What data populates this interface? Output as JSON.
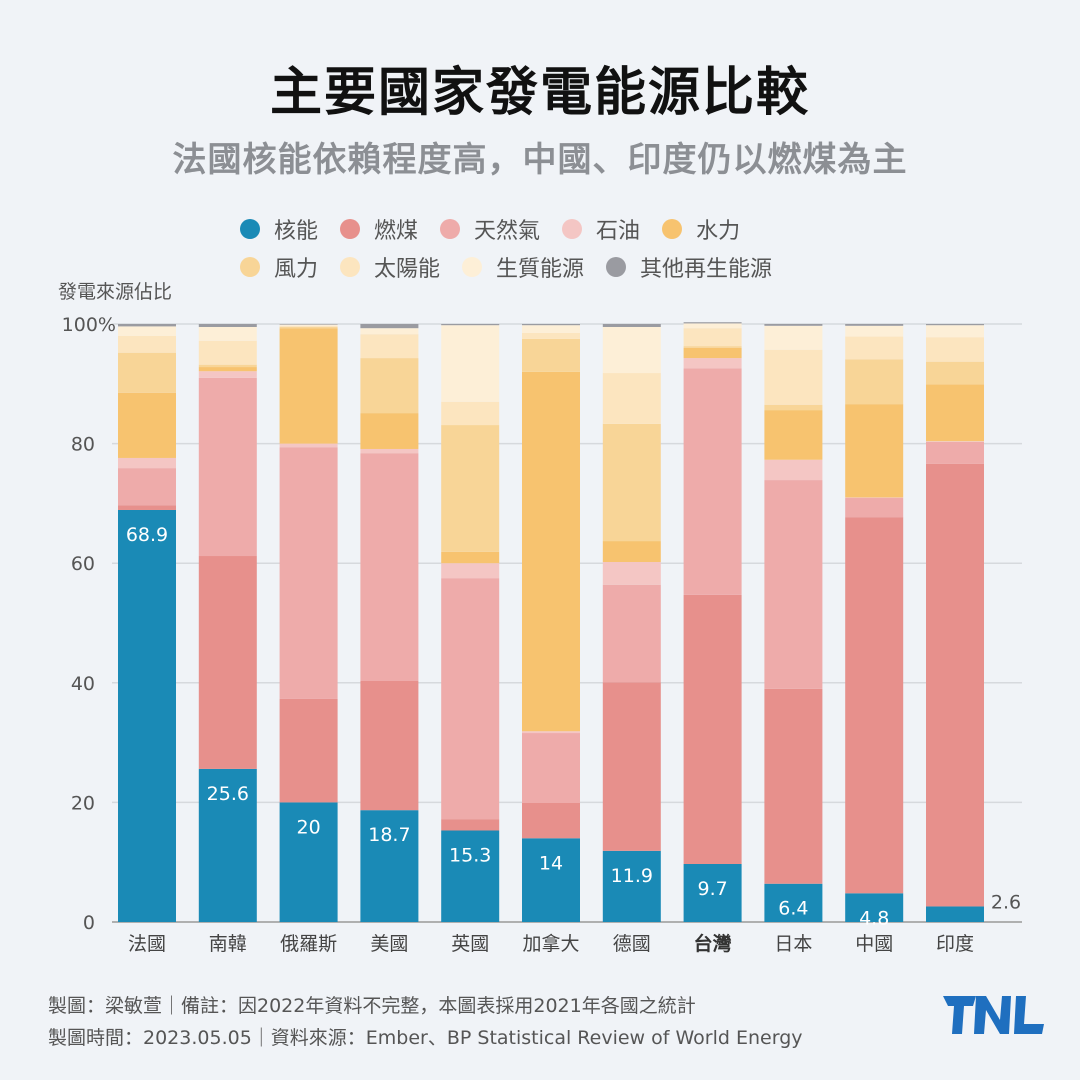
{
  "title": "主要國家發電能源比較",
  "subtitle": "法國核能依賴程度高，中國、印度仍以燃煤為主",
  "footer": {
    "line1": "製圖：梁敏萱｜備註：因2022年資料不完整，本圖表採用2021年各國之統計",
    "line2": "製圖時間：2023.05.05｜資料來源：Ember、BP Statistical Review of World Energy"
  },
  "logo": "TNL",
  "chart_data": {
    "type": "bar",
    "stacked": true,
    "ylabel": "發電來源佔比",
    "ylim": [
      0,
      100
    ],
    "yticks": [
      "0",
      "20",
      "40",
      "60",
      "80",
      "100%"
    ],
    "grid": true,
    "legend_position": "top",
    "categories": [
      "法國",
      "南韓",
      "俄羅斯",
      "美國",
      "英國",
      "加拿大",
      "德國",
      "台灣",
      "日本",
      "中國",
      "印度"
    ],
    "highlight_category": "台灣",
    "series": [
      {
        "name": "核能",
        "color": "#1a8ab6",
        "values": [
          68.9,
          25.6,
          20,
          18.7,
          15.3,
          14,
          11.9,
          9.7,
          6.4,
          4.8,
          2.6
        ],
        "labels": [
          "68.9",
          "25.6",
          "20",
          "18.7",
          "15.3",
          "14",
          "11.9",
          "9.7",
          "6.4",
          "4.8",
          "2.6"
        ]
      },
      {
        "name": "燃煤",
        "color": "#e7908c",
        "values": [
          0.8,
          35.6,
          17.3,
          21.6,
          1.9,
          5.9,
          28.2,
          45,
          32.6,
          62.9,
          74
        ]
      },
      {
        "name": "天然氣",
        "color": "#eeabaa",
        "values": [
          6.2,
          29.8,
          42.1,
          38.1,
          40.3,
          11.7,
          16.3,
          37.9,
          34.9,
          3.2,
          3.7
        ]
      },
      {
        "name": "石油",
        "color": "#f4c6c4",
        "values": [
          1.7,
          1.1,
          0.6,
          0.7,
          2.5,
          0.3,
          3.8,
          1.7,
          3.4,
          0.1,
          0.1
        ]
      },
      {
        "name": "水力",
        "color": "#f7c36f",
        "values": [
          10.9,
          0.7,
          19.3,
          6,
          1.9,
          60.1,
          3.5,
          1.7,
          8.3,
          15.6,
          9.5
        ]
      },
      {
        "name": "風力",
        "color": "#f8d597",
        "values": [
          6.7,
          0.4,
          0.2,
          9.2,
          21.2,
          5.5,
          19.6,
          0.3,
          0.9,
          7.5,
          3.8
        ]
      },
      {
        "name": "太陽能",
        "color": "#fce5bf",
        "values": [
          2.8,
          4,
          0.2,
          4,
          3.9,
          1,
          8.5,
          3,
          9.2,
          3.8,
          4.1
        ]
      },
      {
        "name": "生質能源",
        "color": "#fdefd7",
        "values": [
          1.6,
          2.3,
          0.2,
          1,
          12.8,
          1.3,
          7.7,
          0.8,
          4,
          1.8,
          2
        ]
      },
      {
        "name": "其他再生能源",
        "color": "#9a9ba1",
        "values": [
          0.4,
          0.5,
          0.1,
          0.7,
          0.2,
          0.2,
          0.5,
          0.2,
          0.3,
          0.3,
          0.2
        ]
      }
    ]
  }
}
